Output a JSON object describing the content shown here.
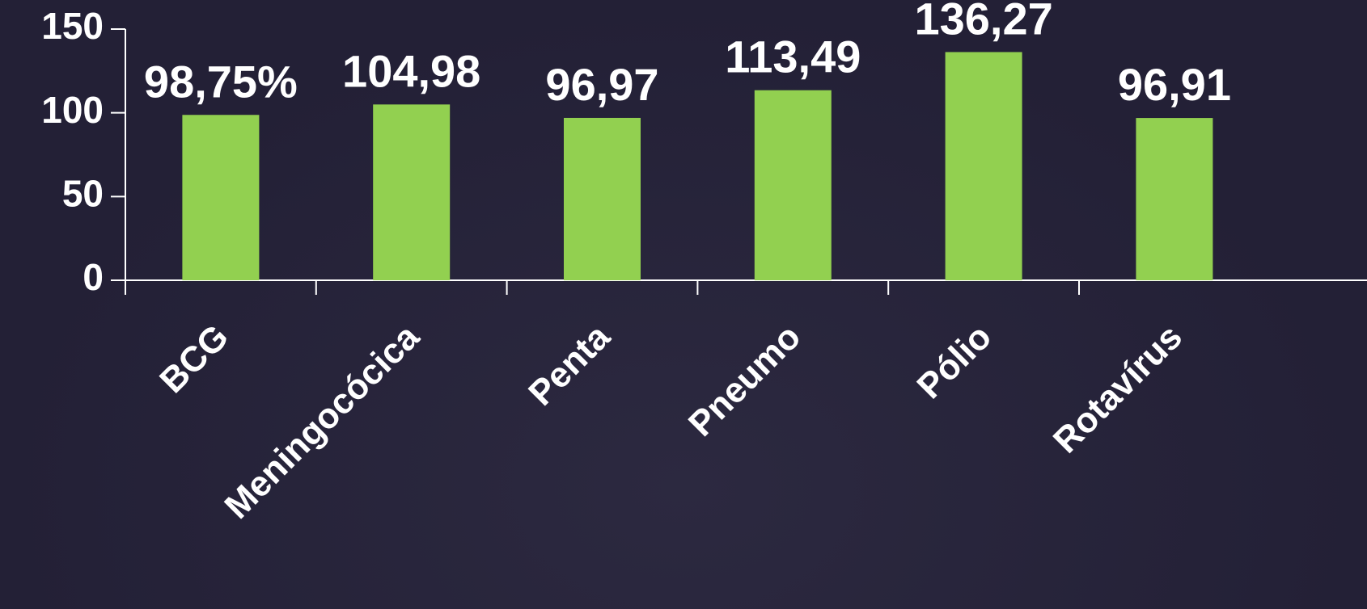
{
  "chart_data": {
    "type": "bar",
    "categories": [
      "BCG",
      "Meningocócica",
      "Penta",
      "Pneumo",
      "Pólio",
      "Rotavírus"
    ],
    "values": [
      98.75,
      104.98,
      96.97,
      113.49,
      136.27,
      96.91
    ],
    "value_labels": [
      "98,75%",
      "104,98",
      "96,97",
      "113,49",
      "136,27",
      "96,91"
    ],
    "color": "#92d050",
    "ylim": [
      0,
      150
    ],
    "yticks": [
      0,
      50,
      100,
      150
    ]
  }
}
